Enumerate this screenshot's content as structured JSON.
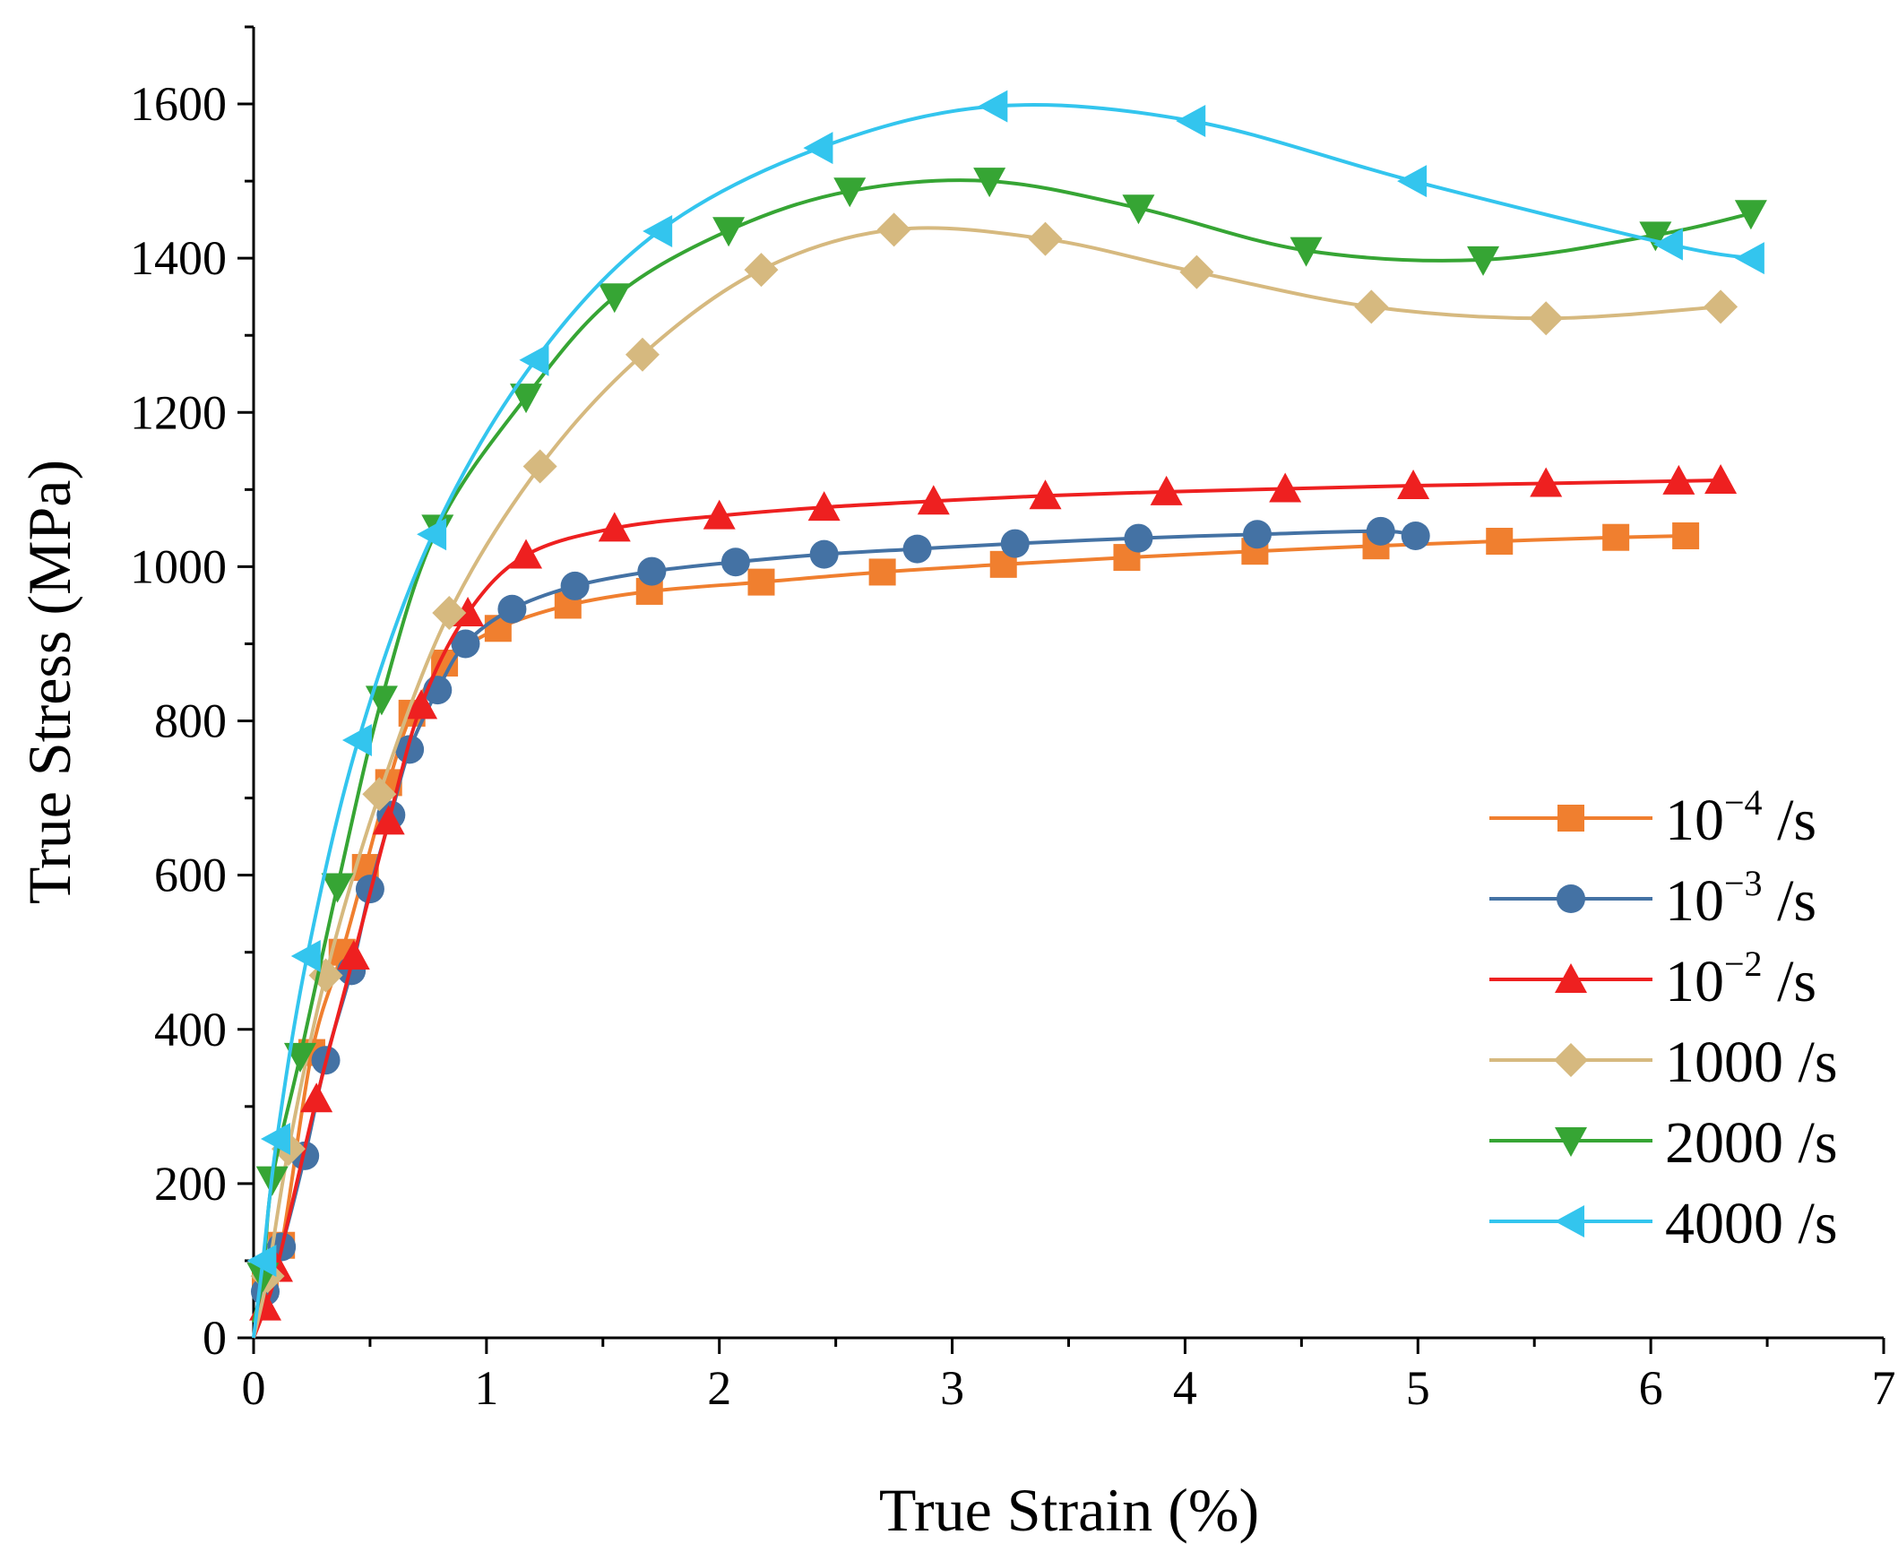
{
  "chart_data": {
    "type": "line",
    "xlabel": "True Strain (%)",
    "ylabel": "True Stress (MPa)",
    "xlim": [
      0,
      7
    ],
    "ylim": [
      0,
      1700
    ],
    "x_ticks": [
      0,
      1,
      2,
      3,
      4,
      5,
      6,
      7
    ],
    "y_ticks": [
      0,
      200,
      400,
      600,
      800,
      1000,
      1200,
      1400,
      1600
    ],
    "x_tick_labels": [
      "0",
      "1",
      "2",
      "3",
      "4",
      "5",
      "6",
      "7"
    ],
    "y_tick_labels": [
      "0",
      "200",
      "400",
      "600",
      "800",
      "1000",
      "1200",
      "1400",
      "1600"
    ],
    "legend_position": "right",
    "series": [
      {
        "name": "10^-4 /s",
        "label_base": "10",
        "label_sup": "−4",
        "label_suffix": " /s",
        "color": "#F07F2F",
        "marker": "square",
        "x": [
          0.0,
          0.05,
          0.12,
          0.25,
          0.38,
          0.48,
          0.58,
          0.68,
          0.82,
          1.05,
          1.35,
          1.7,
          2.18,
          2.7,
          3.22,
          3.75,
          4.3,
          4.82,
          5.35,
          5.85,
          6.15
        ],
        "y": [
          0,
          70,
          120,
          370,
          500,
          610,
          720,
          810,
          875,
          920,
          950,
          968,
          980,
          993,
          1003,
          1012,
          1020,
          1027,
          1033,
          1038,
          1040
        ]
      },
      {
        "name": "10^-3 /s",
        "label_base": "10",
        "label_sup": "−3",
        "label_suffix": " /s",
        "color": "#4472A4",
        "marker": "circle",
        "x": [
          0.0,
          0.05,
          0.12,
          0.22,
          0.31,
          0.42,
          0.5,
          0.59,
          0.67,
          0.79,
          0.91,
          1.11,
          1.38,
          1.71,
          2.07,
          2.45,
          2.85,
          3.27,
          3.8,
          4.31,
          4.84,
          4.99
        ],
        "y": [
          0,
          60,
          118,
          236,
          360,
          476,
          582,
          678,
          763,
          840,
          900,
          945,
          975,
          994,
          1006,
          1016,
          1023,
          1030,
          1037,
          1042,
          1046,
          1040
        ]
      },
      {
        "name": "10^-2 /s",
        "label_base": "10",
        "label_sup": "−2",
        "label_suffix": " /s",
        "color": "#EE2020",
        "marker": "triangle-up",
        "x": [
          0.0,
          0.05,
          0.1,
          0.27,
          0.43,
          0.58,
          0.72,
          0.92,
          1.17,
          1.55,
          2.0,
          2.45,
          2.92,
          3.4,
          3.92,
          4.43,
          4.98,
          5.55,
          6.12,
          6.3
        ],
        "y": [
          0,
          40,
          90,
          310,
          495,
          670,
          820,
          940,
          1015,
          1050,
          1066,
          1077,
          1085,
          1092,
          1097,
          1101,
          1105,
          1108,
          1111,
          1112
        ]
      },
      {
        "name": "1000 /s",
        "label_base": "1000",
        "label_sup": "",
        "label_suffix": " /s",
        "color": "#D6B97F",
        "marker": "diamond",
        "x": [
          0.0,
          0.06,
          0.15,
          0.31,
          0.54,
          0.84,
          1.23,
          1.67,
          2.18,
          2.75,
          3.4,
          4.05,
          4.8,
          5.55,
          6.3
        ],
        "y": [
          0,
          80,
          245,
          470,
          705,
          940,
          1130,
          1275,
          1385,
          1437,
          1425,
          1382,
          1337,
          1322,
          1337
        ]
      },
      {
        "name": "2000 /s",
        "label_base": "2000",
        "label_sup": "",
        "label_suffix": " /s",
        "color": "#36A534",
        "marker": "triangle-down",
        "x": [
          0.0,
          0.04,
          0.08,
          0.2,
          0.36,
          0.55,
          0.79,
          1.17,
          1.55,
          2.04,
          2.56,
          3.16,
          3.8,
          4.52,
          5.28,
          6.02,
          6.43
        ],
        "y": [
          20,
          80,
          205,
          365,
          585,
          828,
          1050,
          1220,
          1350,
          1436,
          1487,
          1500,
          1465,
          1410,
          1398,
          1430,
          1458
        ]
      },
      {
        "name": "4000 /s",
        "label_base": "4000",
        "label_sup": "",
        "label_suffix": " /s",
        "color": "#33C5EE",
        "marker": "triangle-left",
        "x": [
          0.0,
          0.04,
          0.1,
          0.23,
          0.45,
          0.77,
          1.21,
          1.74,
          2.43,
          3.18,
          4.03,
          4.98,
          6.08,
          6.43
        ],
        "y": [
          0,
          100,
          258,
          495,
          775,
          1042,
          1268,
          1435,
          1543,
          1597,
          1578,
          1500,
          1418,
          1400
        ]
      }
    ]
  }
}
